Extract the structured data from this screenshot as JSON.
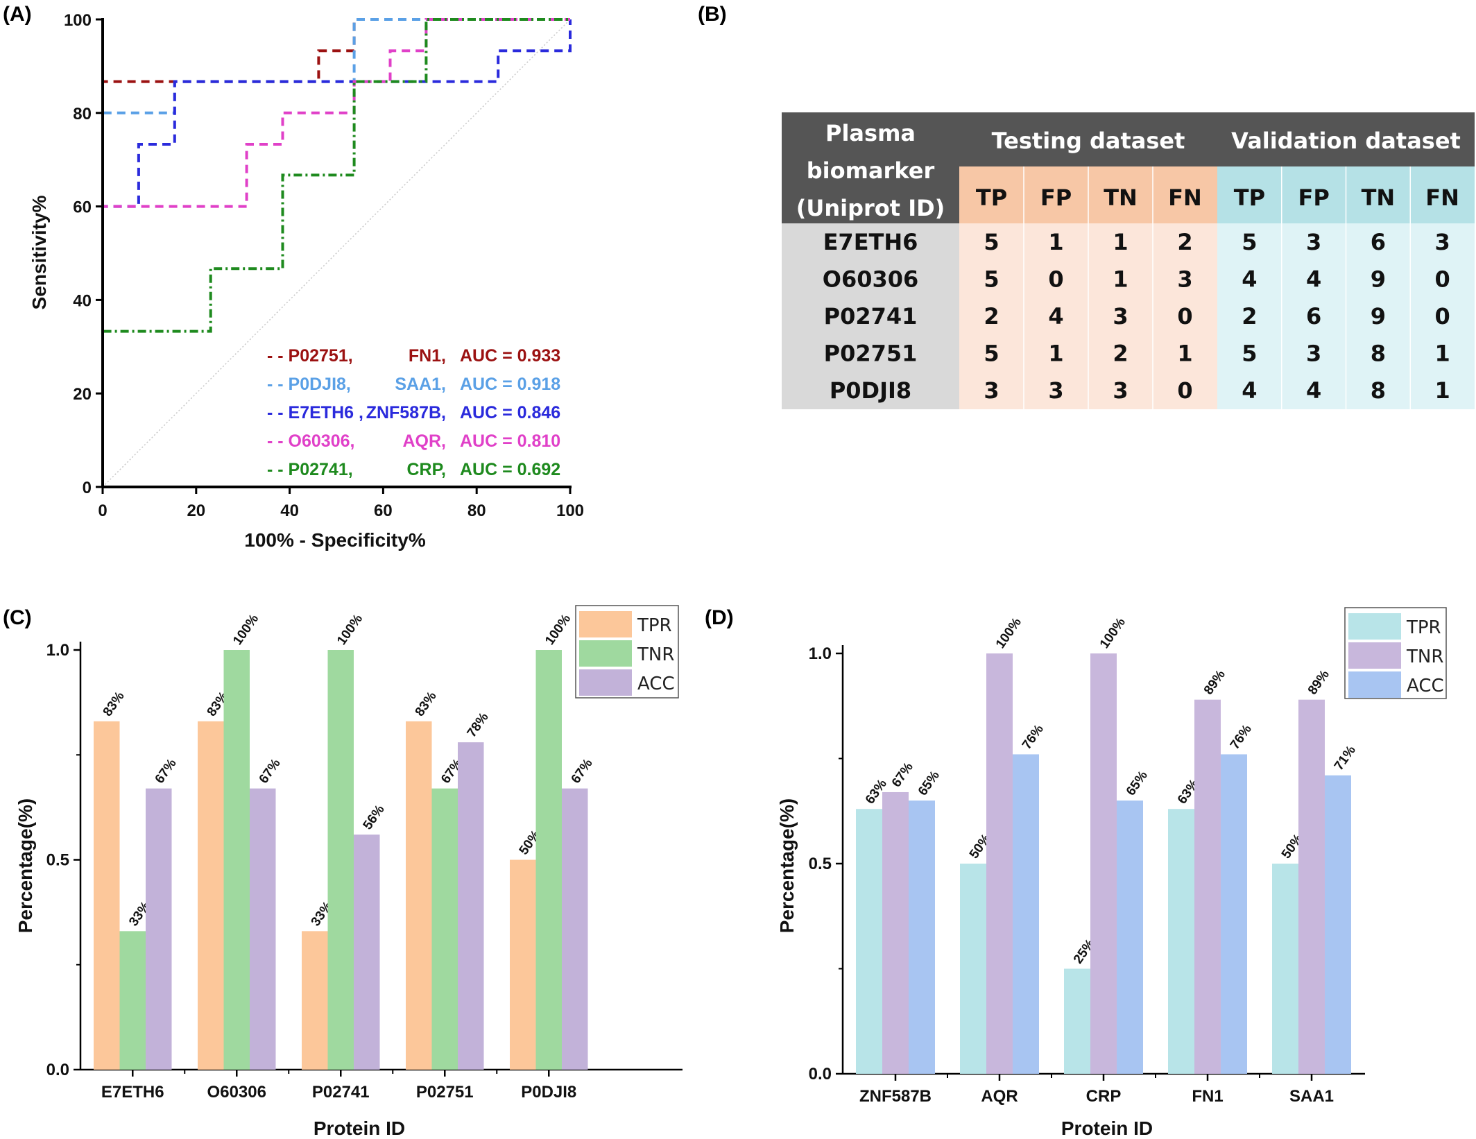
{
  "panel_labels": {
    "a": "(A)",
    "b": "(B)",
    "c": "(C)",
    "d": "(D)"
  },
  "chart_data": [
    {
      "id": "A",
      "type": "line",
      "xlabel": "100% - Specificity%",
      "ylabel": "Sensitivity%",
      "xlim": [
        0,
        100
      ],
      "ylim": [
        0,
        100
      ],
      "xticks": [
        "0",
        "20",
        "40",
        "60",
        "80",
        "100"
      ],
      "yticks": [
        "0",
        "20",
        "40",
        "60",
        "80",
        "100"
      ],
      "reference_line": true,
      "series": [
        {
          "id": "P02751",
          "gene": "FN1",
          "auc_text": "AUC = 0.933",
          "prefix": "- - P02751,",
          "color": "#9b1111",
          "dash": "12,8",
          "points": [
            [
              0,
              0
            ],
            [
              0,
              86.7
            ],
            [
              46.2,
              86.7
            ],
            [
              46.2,
              93.3
            ],
            [
              53.8,
              93.3
            ],
            [
              53.8,
              100
            ],
            [
              100,
              100
            ]
          ]
        },
        {
          "id": "P0DJI8",
          "gene": "SAA1",
          "auc_text": "AUC = 0.918",
          "prefix": "- - P0DJI8,",
          "color": "#5aa0e6",
          "dash": "12,8",
          "points": [
            [
              0,
              0
            ],
            [
              0,
              80
            ],
            [
              15.4,
              80
            ],
            [
              15.4,
              86.7
            ],
            [
              53.8,
              86.7
            ],
            [
              53.8,
              100
            ],
            [
              100,
              100
            ]
          ]
        },
        {
          "id": "E7ETH6",
          "gene": "ZNF587B",
          "auc_text": "AUC = 0.846",
          "prefix": "- - E7ETH6 ,",
          "color": "#2a2adc",
          "dash": "12,8",
          "points": [
            [
              0,
              0
            ],
            [
              0,
              60
            ],
            [
              7.7,
              60
            ],
            [
              7.7,
              73.3
            ],
            [
              15.4,
              73.3
            ],
            [
              15.4,
              86.7
            ],
            [
              84.6,
              86.7
            ],
            [
              84.6,
              93.3
            ],
            [
              100,
              93.3
            ],
            [
              100,
              100
            ]
          ]
        },
        {
          "id": "O60306",
          "gene": "AQR",
          "auc_text": "AUC = 0.810",
          "prefix": "- - O60306,",
          "color": "#e040c8",
          "dash": "12,8",
          "points": [
            [
              0,
              0
            ],
            [
              0,
              60
            ],
            [
              30.8,
              60
            ],
            [
              30.8,
              73.3
            ],
            [
              38.5,
              73.3
            ],
            [
              38.5,
              80
            ],
            [
              53.8,
              80
            ],
            [
              53.8,
              86.7
            ],
            [
              61.5,
              86.7
            ],
            [
              61.5,
              93.3
            ],
            [
              69.2,
              93.3
            ],
            [
              69.2,
              100
            ],
            [
              100,
              100
            ]
          ]
        },
        {
          "id": "P02741",
          "gene": "CRP",
          "auc_text": "AUC = 0.692",
          "prefix": "- - P02741,",
          "color": "#1e8a1e",
          "dash": "12,5,3,5",
          "points": [
            [
              0,
              0
            ],
            [
              0,
              33.3
            ],
            [
              23.1,
              33.3
            ],
            [
              23.1,
              46.7
            ],
            [
              38.5,
              46.7
            ],
            [
              38.5,
              66.7
            ],
            [
              53.8,
              66.7
            ],
            [
              53.8,
              86.7
            ],
            [
              69.2,
              86.7
            ],
            [
              69.2,
              100
            ],
            [
              100,
              100
            ]
          ]
        }
      ]
    },
    {
      "id": "B",
      "type": "table",
      "corner_header": [
        "Plasma",
        "biomarker",
        "(Uniprot ID)"
      ],
      "groups": [
        {
          "name": "Testing dataset",
          "columns": [
            "TP",
            "FP",
            "TN",
            "FN"
          ]
        },
        {
          "name": "Validation dataset",
          "columns": [
            "TP",
            "FP",
            "TN",
            "FN"
          ]
        }
      ],
      "colors": {
        "header_dark": "#555555",
        "header_text": "#ffffff",
        "test_head": "#f7c7a6",
        "test_body": "#fce6da",
        "val_head": "#b5e1e6",
        "val_body": "#dff3f6",
        "id_col": "#d9d9d9"
      },
      "rows": [
        {
          "id": "E7ETH6",
          "values": [
            "5",
            "1",
            "1",
            "2",
            "5",
            "3",
            "6",
            "3"
          ]
        },
        {
          "id": "O60306",
          "values": [
            "5",
            "0",
            "1",
            "3",
            "4",
            "4",
            "9",
            "0"
          ]
        },
        {
          "id": "P02741",
          "values": [
            "2",
            "4",
            "3",
            "0",
            "2",
            "6",
            "9",
            "0"
          ]
        },
        {
          "id": "P02751",
          "values": [
            "5",
            "1",
            "2",
            "1",
            "5",
            "3",
            "8",
            "1"
          ]
        },
        {
          "id": "P0DJI8",
          "values": [
            "3",
            "3",
            "3",
            "0",
            "4",
            "4",
            "8",
            "1"
          ]
        }
      ]
    },
    {
      "id": "C",
      "type": "bar",
      "xlabel": "Protein ID",
      "ylabel": "Percentage(%)",
      "ylim": [
        0,
        1.0
      ],
      "yticks": [
        "0.0",
        "0.5",
        "1.0"
      ],
      "legend_position": "top-right",
      "categories": [
        "E7ETH6",
        "O60306",
        "P02741",
        "P02751",
        "P0DJI8"
      ],
      "series": [
        {
          "name": "TPR",
          "color": "#fcc79a",
          "values": [
            0.83,
            0.83,
            0.33,
            0.83,
            0.5
          ],
          "labels": [
            "83%",
            "83%",
            "33%",
            "83%",
            "50%"
          ]
        },
        {
          "name": "TNR",
          "color": "#9fd99f",
          "values": [
            0.33,
            1.0,
            1.0,
            0.67,
            1.0
          ],
          "labels": [
            "33%",
            "100%",
            "100%",
            "67%",
            "100%"
          ]
        },
        {
          "name": "ACC",
          "color": "#c2b2d9",
          "values": [
            0.67,
            0.67,
            0.56,
            0.78,
            0.67
          ],
          "labels": [
            "67%",
            "67%",
            "56%",
            "78%",
            "67%"
          ]
        }
      ]
    },
    {
      "id": "D",
      "type": "bar",
      "xlabel": "Protein ID",
      "ylabel": "Percentage(%)",
      "ylim": [
        0,
        1.0
      ],
      "yticks": [
        "0.0",
        "0.5",
        "1.0"
      ],
      "legend_position": "top-right",
      "categories": [
        "ZNF587B",
        "AQR",
        "CRP",
        "FN1",
        "SAA1"
      ],
      "series": [
        {
          "name": "TPR",
          "color": "#b8e4e8",
          "values": [
            0.63,
            0.5,
            0.25,
            0.63,
            0.5
          ],
          "labels": [
            "63%",
            "50%",
            "25%",
            "63%",
            "50%"
          ]
        },
        {
          "name": "TNR",
          "color": "#c8b7dc",
          "values": [
            0.67,
            1.0,
            1.0,
            0.89,
            0.89
          ],
          "labels": [
            "67%",
            "100%",
            "100%",
            "89%",
            "89%"
          ]
        },
        {
          "name": "ACC",
          "color": "#a8c5f2",
          "values": [
            0.65,
            0.76,
            0.65,
            0.76,
            0.71
          ],
          "labels": [
            "65%",
            "76%",
            "65%",
            "76%",
            "71%"
          ]
        }
      ]
    }
  ]
}
